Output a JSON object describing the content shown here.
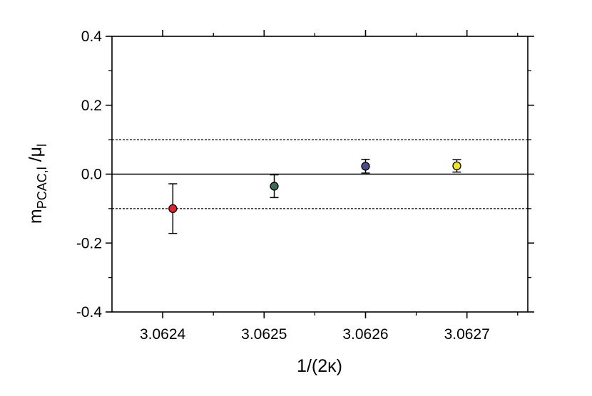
{
  "chart_data": {
    "type": "scatter",
    "xlabel": "1/(2κ)",
    "ylabel": {
      "main": "m",
      "sub": "PCAC,l",
      "sep": " /",
      "main2": "μ",
      "sub2": "l"
    },
    "xlim": [
      3.06235,
      3.06276
    ],
    "ylim": [
      -0.4,
      0.4
    ],
    "x_ticks": [
      3.0624,
      3.0625,
      3.0626,
      3.0627
    ],
    "x_tick_labels": [
      "3.0624",
      "3.0625",
      "3.0626",
      "3.0627"
    ],
    "y_ticks": [
      0.4,
      0.2,
      0.0,
      -0.2,
      -0.4
    ],
    "y_tick_labels": [
      "0.4",
      "0.2",
      "0.0",
      "-0.2",
      "-0.4"
    ],
    "points": [
      {
        "x": 3.06241,
        "y": -0.1,
        "err_low": 0.072,
        "err_high": 0.072,
        "color": "#e8202a"
      },
      {
        "x": 3.06251,
        "y": -0.035,
        "err_low": 0.033,
        "err_high": 0.033,
        "color": "#3d6b55"
      },
      {
        "x": 3.0626,
        "y": 0.023,
        "err_low": 0.02,
        "err_high": 0.02,
        "color": "#4b4b8c"
      },
      {
        "x": 3.06269,
        "y": 0.024,
        "err_low": 0.018,
        "err_high": 0.018,
        "color": "#f2e61a"
      }
    ],
    "reference_lines": [
      {
        "y": 0.0,
        "style": "solid"
      },
      {
        "y": 0.1,
        "style": "dotted"
      },
      {
        "y": -0.1,
        "style": "dotted"
      }
    ],
    "grid": false
  }
}
